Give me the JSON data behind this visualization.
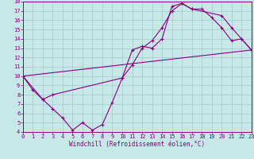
{
  "xlabel": "Windchill (Refroidissement éolien,°C)",
  "bg_color": "#c8e8e8",
  "line_color": "#880080",
  "grid_color": "#a0cccc",
  "xlim": [
    0,
    23
  ],
  "ylim": [
    4,
    18
  ],
  "xticks": [
    0,
    1,
    2,
    3,
    4,
    5,
    6,
    7,
    8,
    9,
    10,
    11,
    12,
    13,
    14,
    15,
    16,
    17,
    18,
    19,
    20,
    21,
    22,
    23
  ],
  "yticks": [
    4,
    5,
    6,
    7,
    8,
    9,
    10,
    11,
    12,
    13,
    14,
    15,
    16,
    17,
    18
  ],
  "line1_x": [
    0,
    1,
    2,
    3,
    4,
    5,
    6,
    7,
    8,
    9,
    10,
    11,
    12,
    13,
    14,
    15,
    16,
    17,
    18,
    19,
    20,
    21,
    22,
    23
  ],
  "line1_y": [
    10,
    8.5,
    7.5,
    6.5,
    5.5,
    4.2,
    5.0,
    4.2,
    4.8,
    7.2,
    9.8,
    12.8,
    13.2,
    13.0,
    14.0,
    17.5,
    17.8,
    17.2,
    17.2,
    16.3,
    15.2,
    13.8,
    14.0,
    12.8
  ],
  "line2_x": [
    0,
    2,
    3,
    10,
    11,
    12,
    13,
    14,
    15,
    16,
    17,
    20,
    21,
    22,
    23
  ],
  "line2_y": [
    10,
    7.5,
    8.0,
    9.8,
    11.2,
    13.0,
    13.8,
    15.2,
    17.0,
    17.8,
    17.2,
    16.5,
    15.2,
    14.0,
    12.8
  ],
  "line3_x": [
    0,
    23
  ],
  "line3_y": [
    10,
    12.8
  ]
}
